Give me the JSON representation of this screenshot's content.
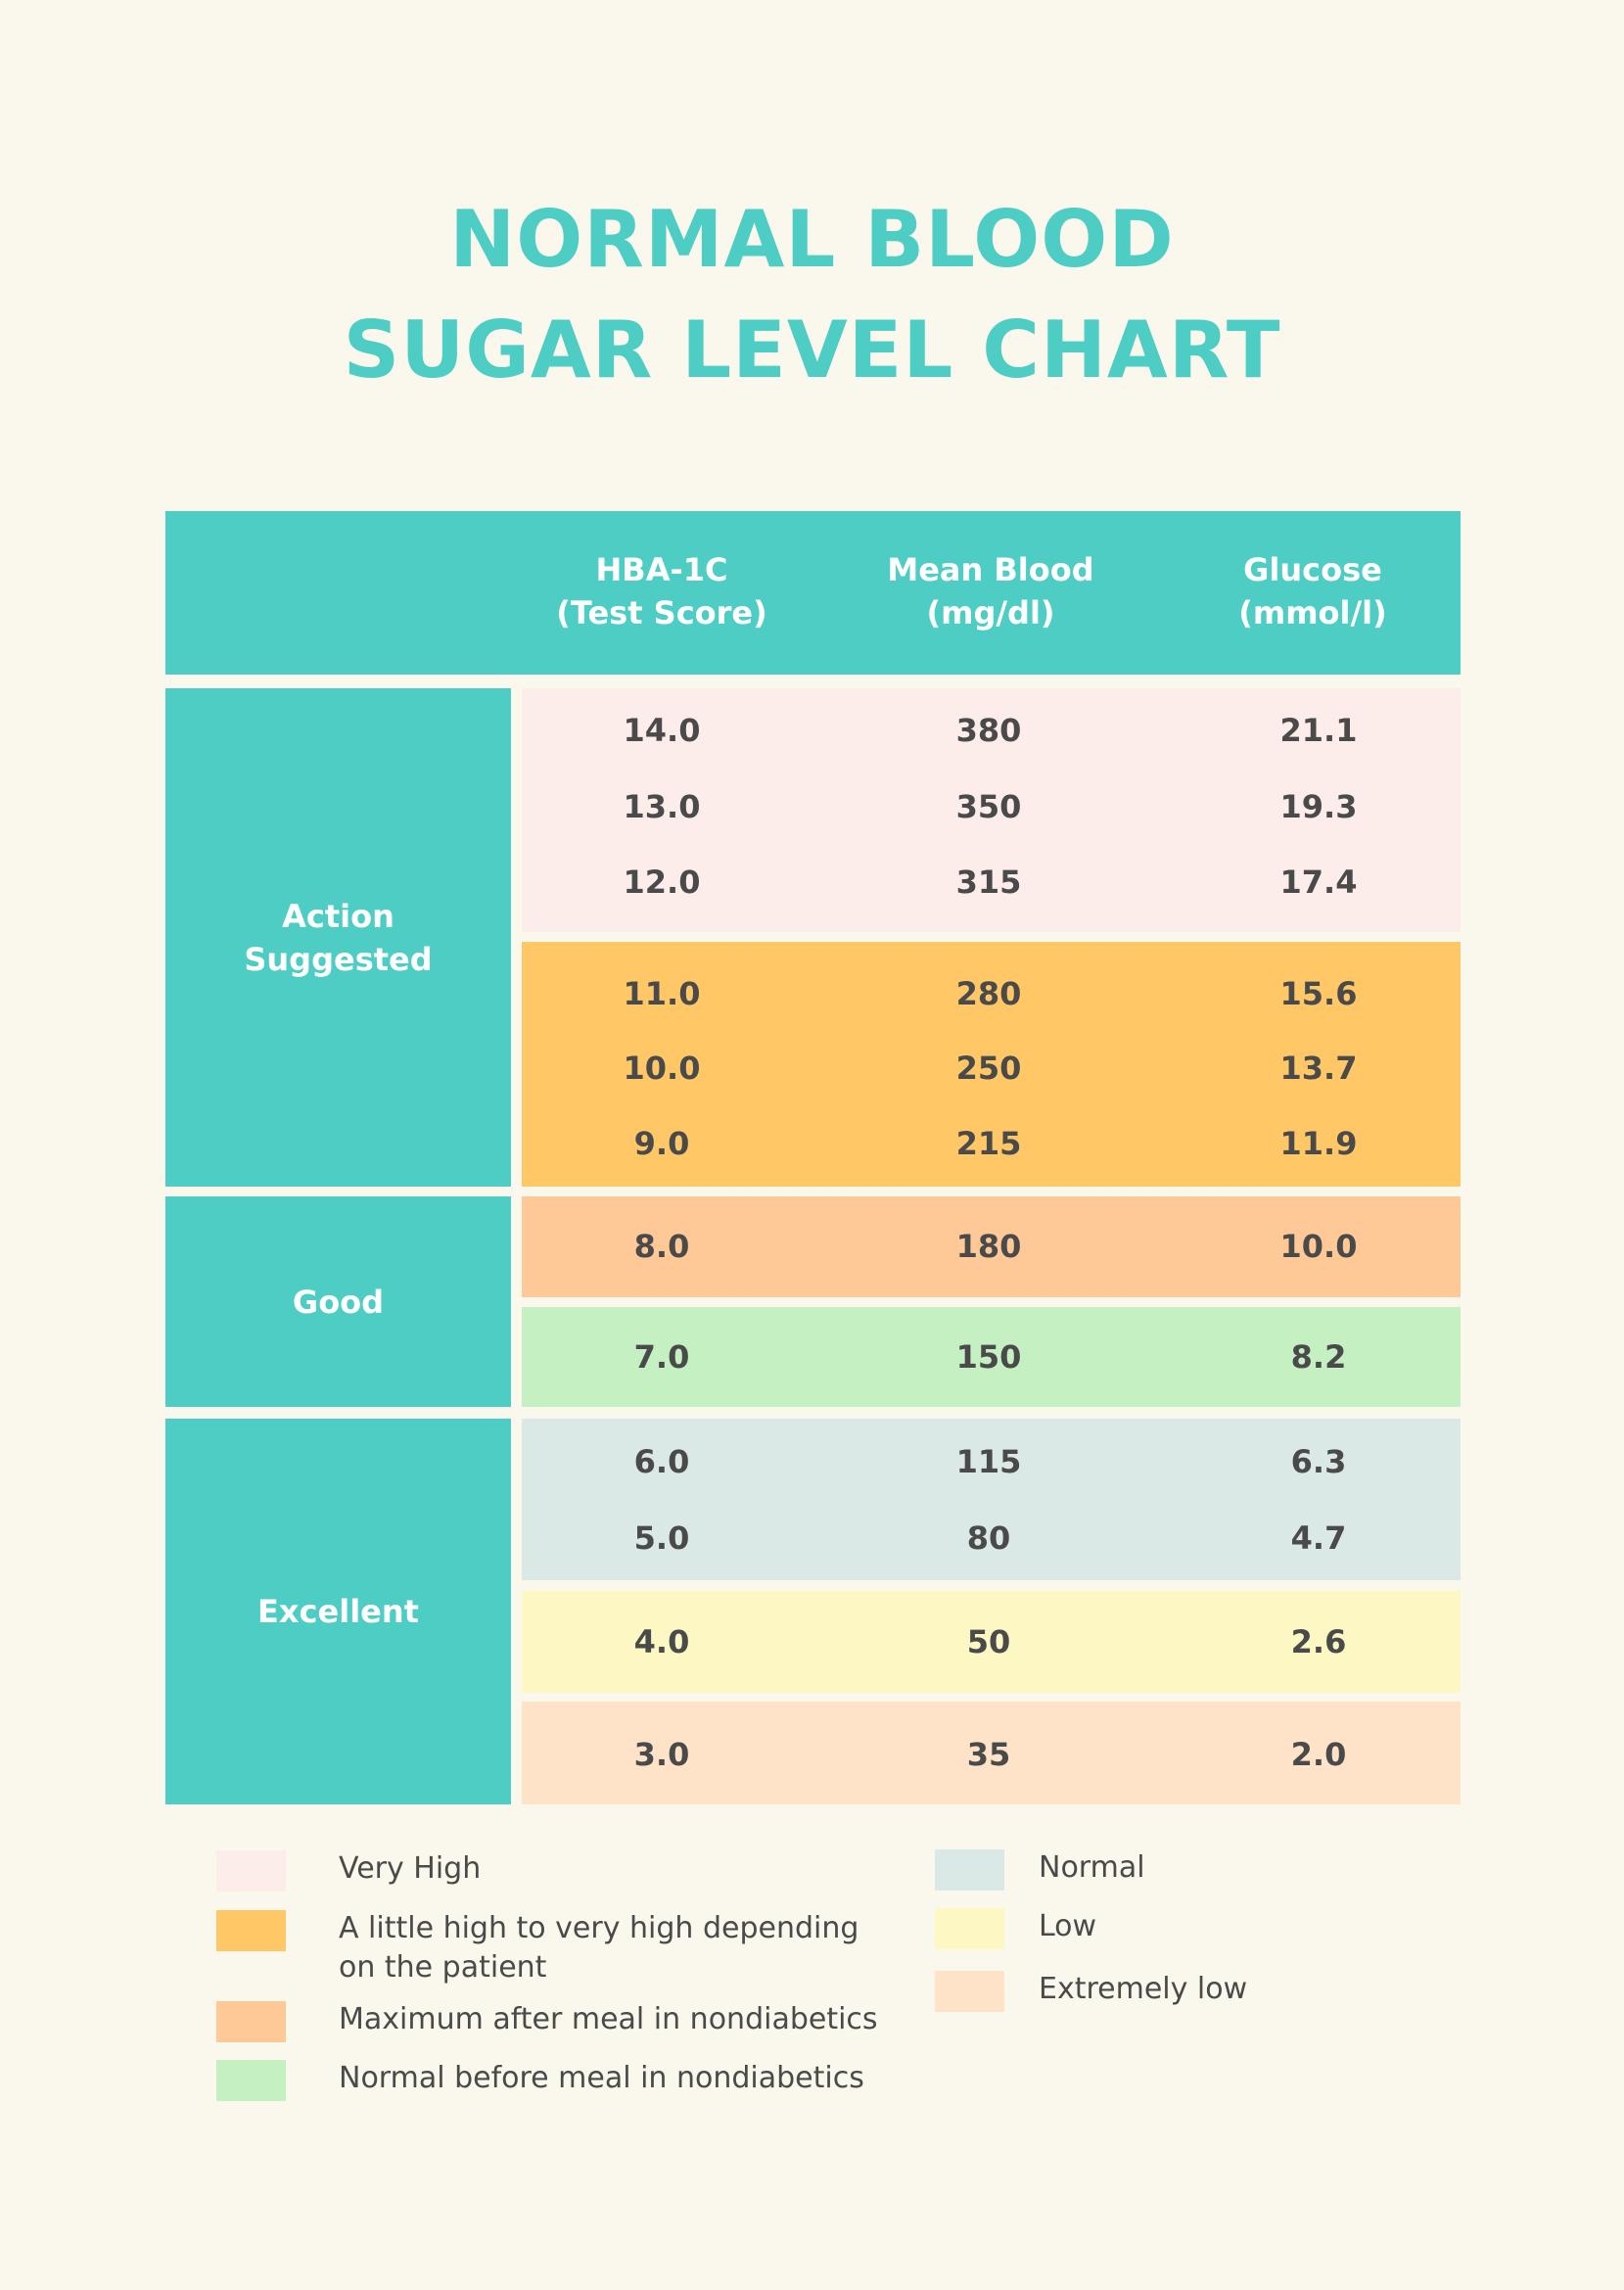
{
  "title": {
    "line1": "NORMAL BLOOD",
    "line2": "SUGAR LEVEL CHART"
  },
  "colors": {
    "accent": "#4ecdc4",
    "background": "#faf8ec",
    "text": "#4a4a4a"
  },
  "table": {
    "headers": [
      {
        "line1": "HBA-1C",
        "line2": "(Test Score)"
      },
      {
        "line1": "Mean Blood",
        "line2": "(mg/dl)"
      },
      {
        "line1": "Glucose",
        "line2": "(mmol/l)"
      }
    ],
    "groups": [
      {
        "label": "Action Suggested"
      },
      {
        "label": "Good"
      },
      {
        "label": "Excellent"
      }
    ],
    "bands": [
      {
        "category": "Very High",
        "color": "#fcecea",
        "rows": [
          [
            "14.0",
            "380",
            "21.1"
          ],
          [
            "13.0",
            "350",
            "19.3"
          ],
          [
            "12.0",
            "315",
            "17.4"
          ]
        ]
      },
      {
        "category": "A little high to very high depending on the patient",
        "color": "#ffc766",
        "rows": [
          [
            "11.0",
            "280",
            "15.6"
          ],
          [
            "10.0",
            "250",
            "13.7"
          ],
          [
            "9.0",
            "215",
            "11.9"
          ]
        ]
      },
      {
        "category": "Maximum after meal in nondiabetics",
        "color": "#ffc997",
        "rows": [
          [
            "8.0",
            "180",
            "10.0"
          ]
        ]
      },
      {
        "category": "Normal before meal in nondiabetics",
        "color": "#c4f0c2",
        "rows": [
          [
            "7.0",
            "150",
            "8.2"
          ]
        ]
      },
      {
        "category": "Normal",
        "color": "#dae8e6",
        "rows": [
          [
            "6.0",
            "115",
            "6.3"
          ],
          [
            "5.0",
            "80",
            "4.7"
          ]
        ]
      },
      {
        "category": "Low",
        "color": "#fcf7c3",
        "rows": [
          [
            "4.0",
            "50",
            "2.6"
          ]
        ]
      },
      {
        "category": "Extremely low",
        "color": "#ffe3c8",
        "rows": [
          [
            "3.0",
            "35",
            "2.0"
          ]
        ]
      }
    ]
  },
  "legend": [
    {
      "label": "Very High",
      "color": "#fcecea"
    },
    {
      "label": "A little high to very high depending",
      "label2": "on the patient",
      "color": "#ffc766"
    },
    {
      "label": "Maximum after meal in nondiabetics",
      "color": "#ffc997"
    },
    {
      "label": "Normal before meal in nondiabetics",
      "color": "#c4f0c2"
    },
    {
      "label": "Normal",
      "color": "#dae8e6"
    },
    {
      "label": "Low",
      "color": "#fcf7c3"
    },
    {
      "label": "Extremely low",
      "color": "#ffe3c8"
    }
  ]
}
